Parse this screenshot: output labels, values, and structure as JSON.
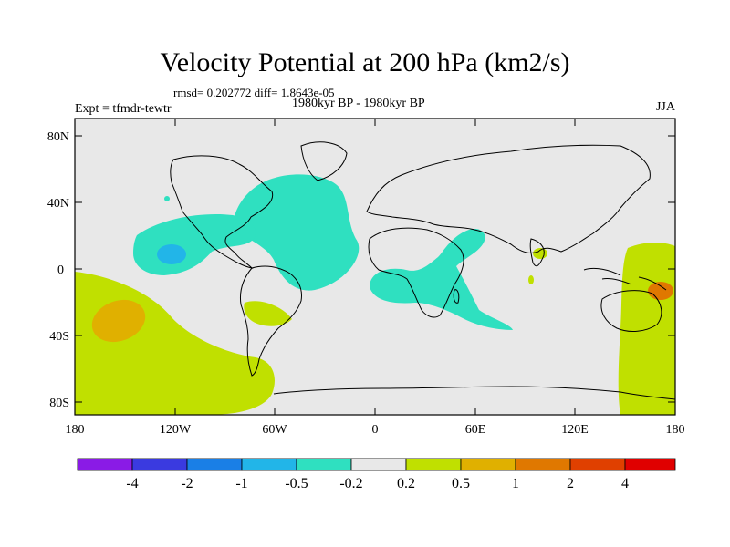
{
  "title": "Velocity Potential at 200 hPa (km2/s)",
  "stats": "rmsd= 0.202772 diff= 1.8643e-05",
  "experiment": "Expt = tfmdr-tewtr",
  "period": "1980kyr BP - 1980kyr BP",
  "season": "JJA",
  "lat_ticks": [
    {
      "value": 80,
      "label": "80N"
    },
    {
      "value": 40,
      "label": "40N"
    },
    {
      "value": 0,
      "label": "0"
    },
    {
      "value": -40,
      "label": "40S"
    },
    {
      "value": -80,
      "label": "80S"
    }
  ],
  "lon_ticks": [
    {
      "value": -180,
      "label": "180"
    },
    {
      "value": -120,
      "label": "120W"
    },
    {
      "value": -60,
      "label": "60W"
    },
    {
      "value": 0,
      "label": "0"
    },
    {
      "value": 60,
      "label": "60E"
    },
    {
      "value": 120,
      "label": "120E"
    },
    {
      "value": 180,
      "label": "180"
    }
  ],
  "colorbar": {
    "colors": [
      "#8a1be6",
      "#3a3ae0",
      "#1a7fe6",
      "#22b5e8",
      "#2fe0c0",
      "#e8e8e8",
      "#c0e000",
      "#e0b000",
      "#e07800",
      "#e04000",
      "#e00000"
    ],
    "labels": [
      "-4",
      "-2",
      "-1",
      "-0.5",
      "-0.2",
      "0.2",
      "0.5",
      "1",
      "2",
      "4"
    ]
  },
  "palette": {
    "background": "#e8e8e8",
    "neg_light": "#2fe0c0",
    "neg_mid": "#22b5e8",
    "pos_light": "#c0e000",
    "pos_mid": "#e0b000",
    "pos_high": "#e07800"
  }
}
